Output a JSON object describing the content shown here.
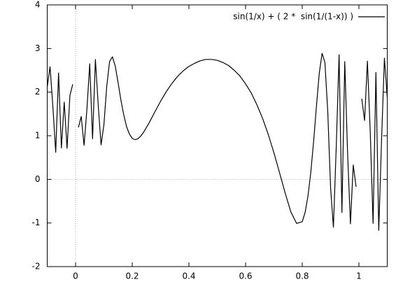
{
  "chart_data": {
    "type": "line",
    "x": [
      -0.1,
      -0.09,
      -0.08,
      -0.07,
      -0.06,
      -0.05,
      -0.04,
      -0.03,
      -0.02,
      -0.01,
      0,
      0.01,
      0.02,
      0.03,
      0.04,
      0.05,
      0.06,
      0.07,
      0.08,
      0.09,
      0.1,
      0.11,
      0.12,
      0.13,
      0.14,
      0.15,
      0.16,
      0.17,
      0.18,
      0.19,
      0.2,
      0.21,
      0.22,
      0.23,
      0.24,
      0.25,
      0.26,
      0.28,
      0.3,
      0.32,
      0.34,
      0.36,
      0.38,
      0.4,
      0.42,
      0.44,
      0.46,
      0.48,
      0.5,
      0.52,
      0.54,
      0.56,
      0.58,
      0.6,
      0.62,
      0.64,
      0.66,
      0.68,
      0.7,
      0.72,
      0.74,
      0.76,
      0.78,
      0.8,
      0.81,
      0.82,
      0.83,
      0.84,
      0.85,
      0.86,
      0.87,
      0.88,
      0.89,
      0.9,
      0.91,
      0.92,
      0.93,
      0.94,
      0.95,
      0.96,
      0.97,
      0.98,
      0.99,
      1,
      1.01,
      1.02,
      1.03,
      1.04,
      1.05,
      1.06,
      1.07,
      1.08,
      1.09,
      1.1
    ],
    "series": [
      {
        "name": "sin(1/x) + ( 2 *  sin(1/(1-x)) )",
        "color": "#000000",
        "values": [
          2.12,
          2.58,
          1.66,
          0.62,
          2.44,
          0.72,
          1.77,
          0.71,
          1.92,
          2.18,
          null,
          1.19,
          1.44,
          0.78,
          1.6,
          2.65,
          0.93,
          2.75,
          1.7,
          0.79,
          1.25,
          2.13,
          2.7,
          2.81,
          2.6,
          2.22,
          1.82,
          1.48,
          1.21,
          1.04,
          0.94,
          0.91,
          0.93,
          0.99,
          1.08,
          1.19,
          1.3,
          1.55,
          1.79,
          2.01,
          2.2,
          2.36,
          2.49,
          2.59,
          2.66,
          2.72,
          2.75,
          2.75,
          2.73,
          2.68,
          2.61,
          2.5,
          2.37,
          2.19,
          1.98,
          1.71,
          1.4,
          1.03,
          0.61,
          0.15,
          -0.32,
          -0.75,
          -1.01,
          -0.97,
          -0.76,
          -0.39,
          0.15,
          0.86,
          1.67,
          2.43,
          2.89,
          2.68,
          1.56,
          -0.19,
          -1.1,
          0.75,
          2.86,
          -0.76,
          2.7,
          0.6,
          -1.02,
          0.33,
          -0.17,
          null,
          1.85,
          1.35,
          2.71,
          1.08,
          -1.01,
          2.45,
          -1.17,
          0.93,
          2.78,
          1.88
        ]
      }
    ],
    "xlim": [
      -0.1,
      1.1
    ],
    "xticks": [
      0,
      0.2,
      0.4,
      0.6,
      0.8,
      1
    ],
    "ylim": [
      -2,
      4
    ],
    "yticks": [
      -2,
      -1,
      0,
      1,
      2,
      3,
      4
    ],
    "zeroaxis": true,
    "legend": "top-right"
  }
}
